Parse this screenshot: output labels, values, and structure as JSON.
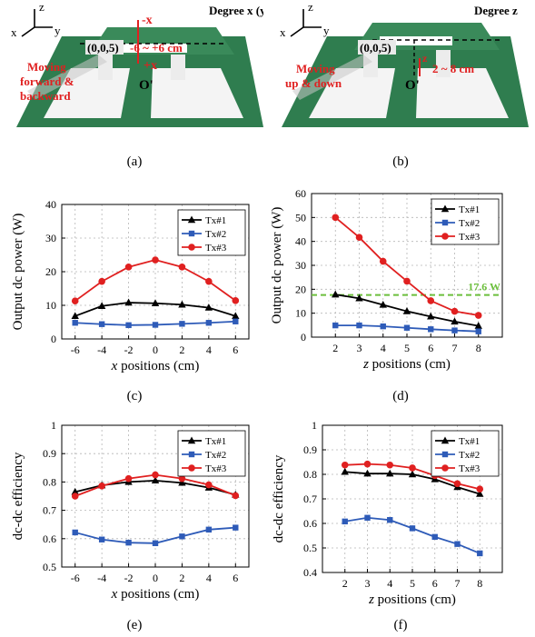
{
  "photos": [
    {
      "degree_label": "Degree x (y)",
      "axes": {
        "z": "z",
        "x": "x",
        "y": "y"
      },
      "origin_label": "(0,0,5)",
      "motion_label": [
        "Moving",
        "forward &",
        "backward"
      ],
      "range_label": "-6 ~ +6 cm",
      "minus_label": "-x",
      "plus_label": "+x",
      "center_label": "O'"
    },
    {
      "degree_label": "Degree z",
      "axes": {
        "z": "z",
        "x": "x",
        "y": "y"
      },
      "origin_label": "(0,0,5)",
      "motion_label": [
        "Moving",
        "up & down"
      ],
      "range_label": "2 ~ 8 cm",
      "z_label": "z",
      "center_label": "O'"
    }
  ],
  "captions": [
    "(a)",
    "(b)",
    "(c)",
    "(d)",
    "(e)",
    "(f)"
  ],
  "colors": {
    "tx1": "#000000",
    "tx2": "#2e5bb8",
    "tx3": "#e02020",
    "threshold": "#6cbf3c",
    "annot": "#e02020",
    "board": "#2f7d4f"
  },
  "chart_data": [
    {
      "type": "line",
      "x": [
        -6,
        -4,
        -2,
        0,
        2,
        4,
        6
      ],
      "xlabel": "x positions (cm)",
      "ylabel": "Output dc power (W)",
      "xlim": [
        -7,
        7
      ],
      "ylim": [
        0,
        40
      ],
      "xticks": [
        -6,
        -4,
        -2,
        0,
        2,
        4,
        6
      ],
      "yticks": [
        0,
        10,
        20,
        30,
        40
      ],
      "grid": true,
      "legend": "top-right",
      "series": [
        {
          "name": "Tx#1",
          "values": [
            6.8,
            9.8,
            10.8,
            10.6,
            10.2,
            9.3,
            6.8
          ]
        },
        {
          "name": "Tx#2",
          "values": [
            4.8,
            4.4,
            4.1,
            4.2,
            4.5,
            4.8,
            5.2
          ]
        },
        {
          "name": "Tx#3",
          "values": [
            11.3,
            17.1,
            21.4,
            23.5,
            21.4,
            17.1,
            11.4
          ]
        }
      ]
    },
    {
      "type": "line",
      "x": [
        2,
        3,
        4,
        5,
        6,
        7,
        8
      ],
      "xlabel": "z positions (cm)",
      "ylabel": "Output dc power (W)",
      "xlim": [
        1,
        9
      ],
      "ylim": [
        0,
        60
      ],
      "xticks": [
        2,
        3,
        4,
        5,
        6,
        7,
        8
      ],
      "yticks": [
        0,
        10,
        20,
        30,
        40,
        50,
        60
      ],
      "grid": true,
      "legend": "top-right",
      "threshold": {
        "value": 17.6,
        "label": "17.6 W"
      },
      "series": [
        {
          "name": "Tx#1",
          "values": [
            17.8,
            16.2,
            13.5,
            10.8,
            8.6,
            6.5,
            4.7
          ]
        },
        {
          "name": "Tx#2",
          "values": [
            4.9,
            4.9,
            4.5,
            3.9,
            3.3,
            2.8,
            2.4
          ]
        },
        {
          "name": "Tx#3",
          "values": [
            50,
            41.7,
            31.7,
            23.4,
            15.2,
            10.8,
            9.1
          ]
        }
      ]
    },
    {
      "type": "line",
      "x": [
        -6,
        -4,
        -2,
        0,
        2,
        4,
        6
      ],
      "xlabel": "x positions (cm)",
      "ylabel": "dc-dc efficiency",
      "xlim": [
        -7,
        7
      ],
      "ylim": [
        0.5,
        1
      ],
      "xticks": [
        -6,
        -4,
        -2,
        0,
        2,
        4,
        6
      ],
      "yticks": [
        0.5,
        0.6,
        0.7,
        0.8,
        0.9,
        1
      ],
      "grid": true,
      "legend": "top-right",
      "series": [
        {
          "name": "Tx#1",
          "values": [
            0.765,
            0.788,
            0.8,
            0.805,
            0.797,
            0.78,
            0.755
          ]
        },
        {
          "name": "Tx#2",
          "values": [
            0.622,
            0.597,
            0.586,
            0.584,
            0.608,
            0.632,
            0.639
          ]
        },
        {
          "name": "Tx#3",
          "values": [
            0.75,
            0.786,
            0.812,
            0.825,
            0.812,
            0.79,
            0.752
          ]
        }
      ]
    },
    {
      "type": "line",
      "x": [
        2,
        3,
        4,
        5,
        6,
        7,
        8
      ],
      "xlabel": "z positions (cm)",
      "ylabel": "dc-dc efficiency",
      "xlim": [
        1,
        9
      ],
      "ylim": [
        0.4,
        1
      ],
      "xticks": [
        2,
        3,
        4,
        5,
        6,
        7,
        8
      ],
      "yticks": [
        0.4,
        0.5,
        0.6,
        0.7,
        0.8,
        0.9,
        1
      ],
      "grid": true,
      "legend": "top-right",
      "series": [
        {
          "name": "Tx#1",
          "values": [
            0.81,
            0.803,
            0.803,
            0.8,
            0.78,
            0.748,
            0.72
          ]
        },
        {
          "name": "Tx#2",
          "values": [
            0.608,
            0.623,
            0.614,
            0.58,
            0.545,
            0.516,
            0.478
          ]
        },
        {
          "name": "Tx#3",
          "values": [
            0.838,
            0.842,
            0.838,
            0.826,
            0.795,
            0.762,
            0.74
          ]
        }
      ]
    }
  ]
}
